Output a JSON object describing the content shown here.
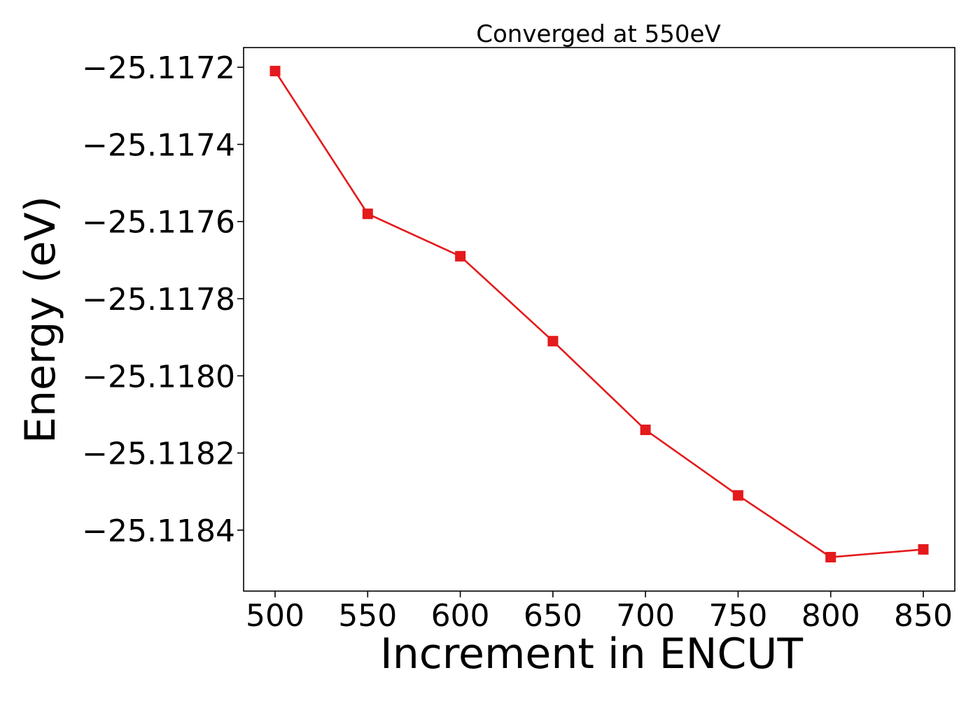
{
  "chart_data": {
    "type": "line",
    "title": "Converged at 550eV",
    "xlabel": "Increment in ENCUT",
    "ylabel": "Energy (eV)",
    "x": [
      500,
      550,
      600,
      650,
      700,
      750,
      800,
      850
    ],
    "series": [
      {
        "values": [
          -25.11721,
          -25.11758,
          -25.11769,
          -25.11791,
          -25.11814,
          -25.11831,
          -25.11847,
          -25.11845
        ],
        "color": "#e41a1c",
        "marker": "square"
      }
    ],
    "xticks": [
      500,
      550,
      600,
      650,
      700,
      750,
      800,
      850
    ],
    "xtick_labels": [
      "500",
      "550",
      "600",
      "650",
      "700",
      "750",
      "800",
      "850"
    ],
    "yticks": [
      -25.1172,
      -25.1174,
      -25.1176,
      -25.1178,
      -25.118,
      -25.1182,
      -25.1184
    ],
    "ytick_labels": [
      "−25.1172",
      "−25.1174",
      "−25.1176",
      "−25.1178",
      "−25.1180",
      "−25.1182",
      "−25.1184"
    ],
    "xlim": [
      483,
      867
    ],
    "ylim": [
      -25.118558,
      -25.117149
    ],
    "grid": false,
    "legend": false
  }
}
